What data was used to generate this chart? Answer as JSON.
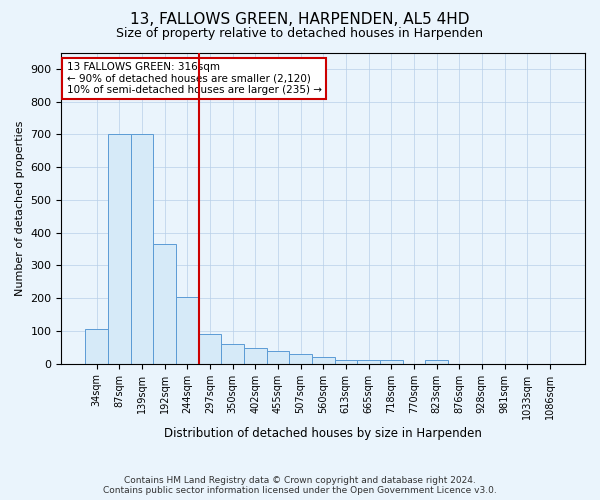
{
  "title": "13, FALLOWS GREEN, HARPENDEN, AL5 4HD",
  "subtitle": "Size of property relative to detached houses in Harpenden",
  "xlabel": "Distribution of detached houses by size in Harpenden",
  "ylabel": "Number of detached properties",
  "bin_labels": [
    "34sqm",
    "87sqm",
    "139sqm",
    "192sqm",
    "244sqm",
    "297sqm",
    "350sqm",
    "402sqm",
    "455sqm",
    "507sqm",
    "560sqm",
    "613sqm",
    "665sqm",
    "718sqm",
    "770sqm",
    "823sqm",
    "876sqm",
    "928sqm",
    "981sqm",
    "1033sqm",
    "1086sqm"
  ],
  "bar_heights": [
    105,
    700,
    700,
    365,
    205,
    90,
    60,
    48,
    40,
    30,
    20,
    10,
    10,
    10,
    0,
    10,
    0,
    0,
    0,
    0,
    0
  ],
  "bar_color": "#d6eaf8",
  "bar_edge_color": "#5b9bd5",
  "vline_x": 4.5,
  "vline_color": "#cc0000",
  "ylim": [
    0,
    950
  ],
  "yticks": [
    0,
    100,
    200,
    300,
    400,
    500,
    600,
    700,
    800,
    900
  ],
  "annotation_line1": "13 FALLOWS GREEN: 316sqm",
  "annotation_line2": "← 90% of detached houses are smaller (2,120)",
  "annotation_line3": "10% of semi-detached houses are larger (235) →",
  "annotation_box_facecolor": "#ffffff",
  "annotation_box_edgecolor": "#cc0000",
  "footer_line1": "Contains HM Land Registry data © Crown copyright and database right 2024.",
  "footer_line2": "Contains public sector information licensed under the Open Government Licence v3.0.",
  "bg_color": "#eaf4fc",
  "grid_color": "#b8cfe8",
  "title_fontsize": 11,
  "subtitle_fontsize": 9
}
